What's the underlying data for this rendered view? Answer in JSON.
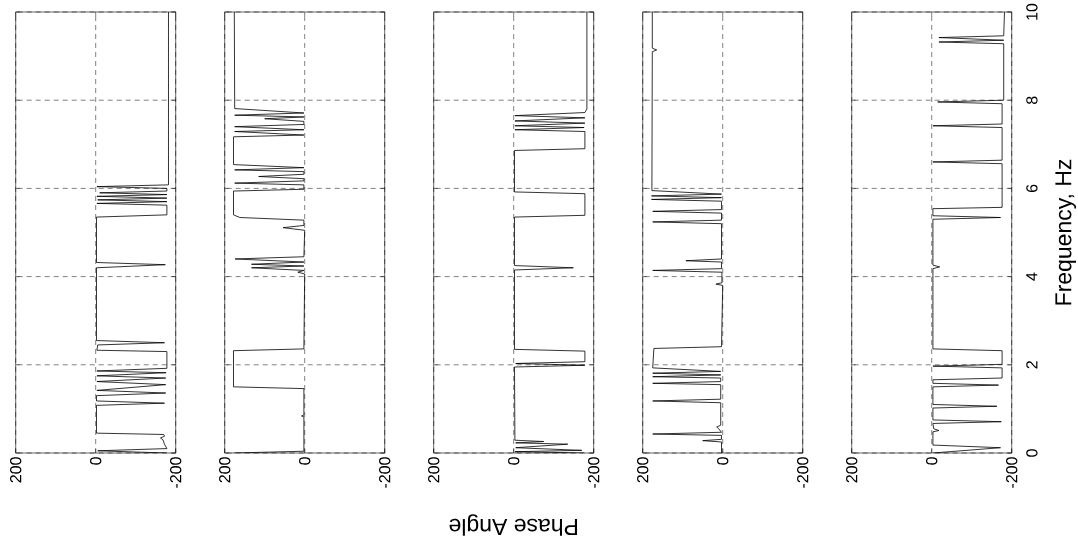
{
  "chart_data": [
    {
      "type": "line",
      "color": "#000000",
      "xlim": [
        200,
        -200
      ],
      "xticks": [
        200,
        0,
        -200
      ],
      "ylim": [
        0,
        10
      ],
      "yticks": [
        0,
        2,
        4,
        6,
        8,
        10
      ],
      "grid": true,
      "tick_labels": "x",
      "x": [
        -178,
        -5,
        -178,
        -172,
        -168,
        -162,
        -172,
        -170,
        -2,
        -2,
        -172,
        -2,
        -2,
        -175,
        -3,
        -175,
        -3,
        -175,
        -3,
        -176,
        -3,
        -178,
        -178,
        -3,
        -5,
        -172,
        -2,
        -2,
        -174,
        -2,
        -2,
        -178,
        -178,
        -3,
        -178,
        -5,
        -178,
        -3,
        -178,
        -10,
        -178,
        -178,
        -3,
        -182,
        -182
      ],
      "values": [
        0.0,
        0.05,
        0.1,
        0.2,
        0.3,
        0.34,
        0.38,
        0.42,
        0.45,
        1.08,
        1.13,
        1.18,
        1.3,
        1.36,
        1.42,
        1.55,
        1.62,
        1.7,
        1.75,
        1.82,
        1.86,
        1.92,
        2.3,
        2.33,
        2.45,
        2.5,
        2.55,
        4.2,
        4.27,
        4.32,
        5.35,
        5.4,
        5.62,
        5.66,
        5.7,
        5.74,
        5.78,
        5.82,
        5.86,
        5.9,
        5.94,
        6.0,
        6.04,
        6.08,
        10
      ]
    },
    {
      "type": "line",
      "color": "#000000",
      "xlim": [
        200,
        -200
      ],
      "xticks": [
        200,
        0,
        -200
      ],
      "ylim": [
        0,
        10
      ],
      "yticks": [
        0,
        2,
        4,
        6,
        8,
        10
      ],
      "grid": true,
      "tick_labels": "x",
      "x": [
        178,
        2,
        2,
        8,
        2,
        2,
        178,
        178,
        2,
        0,
        17,
        2,
        133,
        2,
        133,
        2,
        174,
        2,
        0,
        54,
        2,
        2,
        162,
        178,
        178,
        2,
        2,
        175,
        2,
        2,
        115,
        2,
        2,
        175,
        2,
        178,
        178,
        2,
        175,
        2,
        175,
        2,
        2,
        100,
        2,
        175,
        2,
        175,
        176
      ],
      "values": [
        0.0,
        0.04,
        0.82,
        0.84,
        0.86,
        1.46,
        1.5,
        2.32,
        2.36,
        4.06,
        4.1,
        4.14,
        4.2,
        4.24,
        4.28,
        4.33,
        4.4,
        4.45,
        5.05,
        5.11,
        5.16,
        5.28,
        5.34,
        5.4,
        5.94,
        5.98,
        6.08,
        6.12,
        6.17,
        6.22,
        6.27,
        6.32,
        6.38,
        6.42,
        6.47,
        6.54,
        7.17,
        7.21,
        7.29,
        7.33,
        7.4,
        7.45,
        7.52,
        7.58,
        7.62,
        7.66,
        7.71,
        7.81,
        10
      ]
    },
    {
      "type": "line",
      "color": "#000000",
      "xlim": [
        200,
        -200
      ],
      "xticks": [
        200,
        0,
        -200
      ],
      "ylim": [
        0,
        10
      ],
      "yticks": [
        0,
        2,
        4,
        6,
        8,
        10
      ],
      "grid": true,
      "tick_labels": "x",
      "xlabel": "Phase Angle",
      "x": [
        -175,
        -3,
        -170,
        -5,
        -135,
        -5,
        -75,
        -3,
        -2,
        -178,
        -5,
        -178,
        -178,
        -2,
        -2,
        -149,
        -2,
        -2,
        -178,
        -178,
        -2,
        -2,
        -178,
        -178,
        -3,
        -176,
        -3,
        -178,
        -3,
        -178,
        -3,
        -178,
        -183,
        -183
      ],
      "values": [
        0.0,
        0.03,
        0.06,
        0.12,
        0.2,
        0.23,
        0.26,
        0.29,
        1.95,
        1.99,
        2.03,
        2.07,
        2.31,
        2.35,
        4.15,
        4.2,
        4.25,
        5.35,
        5.39,
        5.88,
        5.92,
        6.86,
        6.9,
        7.29,
        7.33,
        7.38,
        7.42,
        7.48,
        7.53,
        7.6,
        7.65,
        7.72,
        7.8,
        10
      ]
    },
    {
      "type": "line",
      "color": "#000000",
      "xlim": [
        200,
        -200
      ],
      "xticks": [
        200,
        0,
        -200
      ],
      "ylim": [
        0,
        10
      ],
      "yticks": [
        0,
        2,
        4,
        6,
        8,
        10
      ],
      "grid": true,
      "tick_labels": "x",
      "x": [
        3,
        3,
        50,
        3,
        3,
        175,
        3,
        10,
        15,
        5,
        5,
        175,
        5,
        5,
        175,
        5,
        5,
        175,
        5,
        175,
        5,
        175,
        172,
        3,
        0,
        17,
        2,
        2,
        175,
        3,
        3,
        92,
        3,
        3,
        175,
        3,
        3,
        175,
        3,
        3,
        178,
        3,
        178,
        3,
        177,
        176,
        165,
        176,
        176
      ],
      "values": [
        0.0,
        0.25,
        0.28,
        0.31,
        0.4,
        0.43,
        0.47,
        0.55,
        0.59,
        0.63,
        1.14,
        1.18,
        1.22,
        1.55,
        1.58,
        1.62,
        1.7,
        1.73,
        1.77,
        1.81,
        1.85,
        1.93,
        2.37,
        2.41,
        3.8,
        3.83,
        3.86,
        4.1,
        4.14,
        4.18,
        4.33,
        4.36,
        4.4,
        5.2,
        5.24,
        5.28,
        5.44,
        5.48,
        5.52,
        5.71,
        5.75,
        5.79,
        5.83,
        5.87,
        5.95,
        9.1,
        9.14,
        9.18,
        10
      ]
    },
    {
      "type": "line",
      "color": "#000000",
      "xlim": [
        200,
        -200
      ],
      "xticks": [
        200,
        0,
        -200
      ],
      "ylim": [
        0,
        10
      ],
      "yticks": [
        0,
        2,
        4,
        6,
        8,
        10
      ],
      "grid": true,
      "ylabel": "Frequency, Hz",
      "x": [
        -3,
        -172,
        -3,
        -3,
        -18,
        -5,
        -3,
        -174,
        -3,
        -3,
        -163,
        -3,
        -3,
        -167,
        -3,
        -3,
        -176,
        -176,
        -3,
        -176,
        -176,
        -3,
        -3,
        -20,
        -3,
        -3,
        -172,
        -3,
        -3,
        -176,
        -176,
        -3,
        -176,
        -176,
        -3,
        -176,
        -176,
        -15,
        -180,
        -180,
        -18,
        -180,
        -18,
        -180,
        -182
      ],
      "values": [
        0.0,
        0.12,
        0.18,
        0.48,
        0.51,
        0.55,
        0.67,
        0.71,
        0.75,
        1.02,
        1.06,
        1.1,
        1.5,
        1.54,
        1.58,
        1.66,
        1.7,
        1.93,
        1.97,
        2.01,
        2.32,
        2.36,
        4.18,
        4.22,
        4.26,
        5.3,
        5.34,
        5.38,
        5.54,
        5.57,
        6.56,
        6.6,
        6.64,
        7.38,
        7.42,
        7.46,
        7.92,
        7.96,
        8.0,
        9.28,
        9.32,
        9.36,
        9.42,
        9.46,
        10
      ]
    }
  ]
}
